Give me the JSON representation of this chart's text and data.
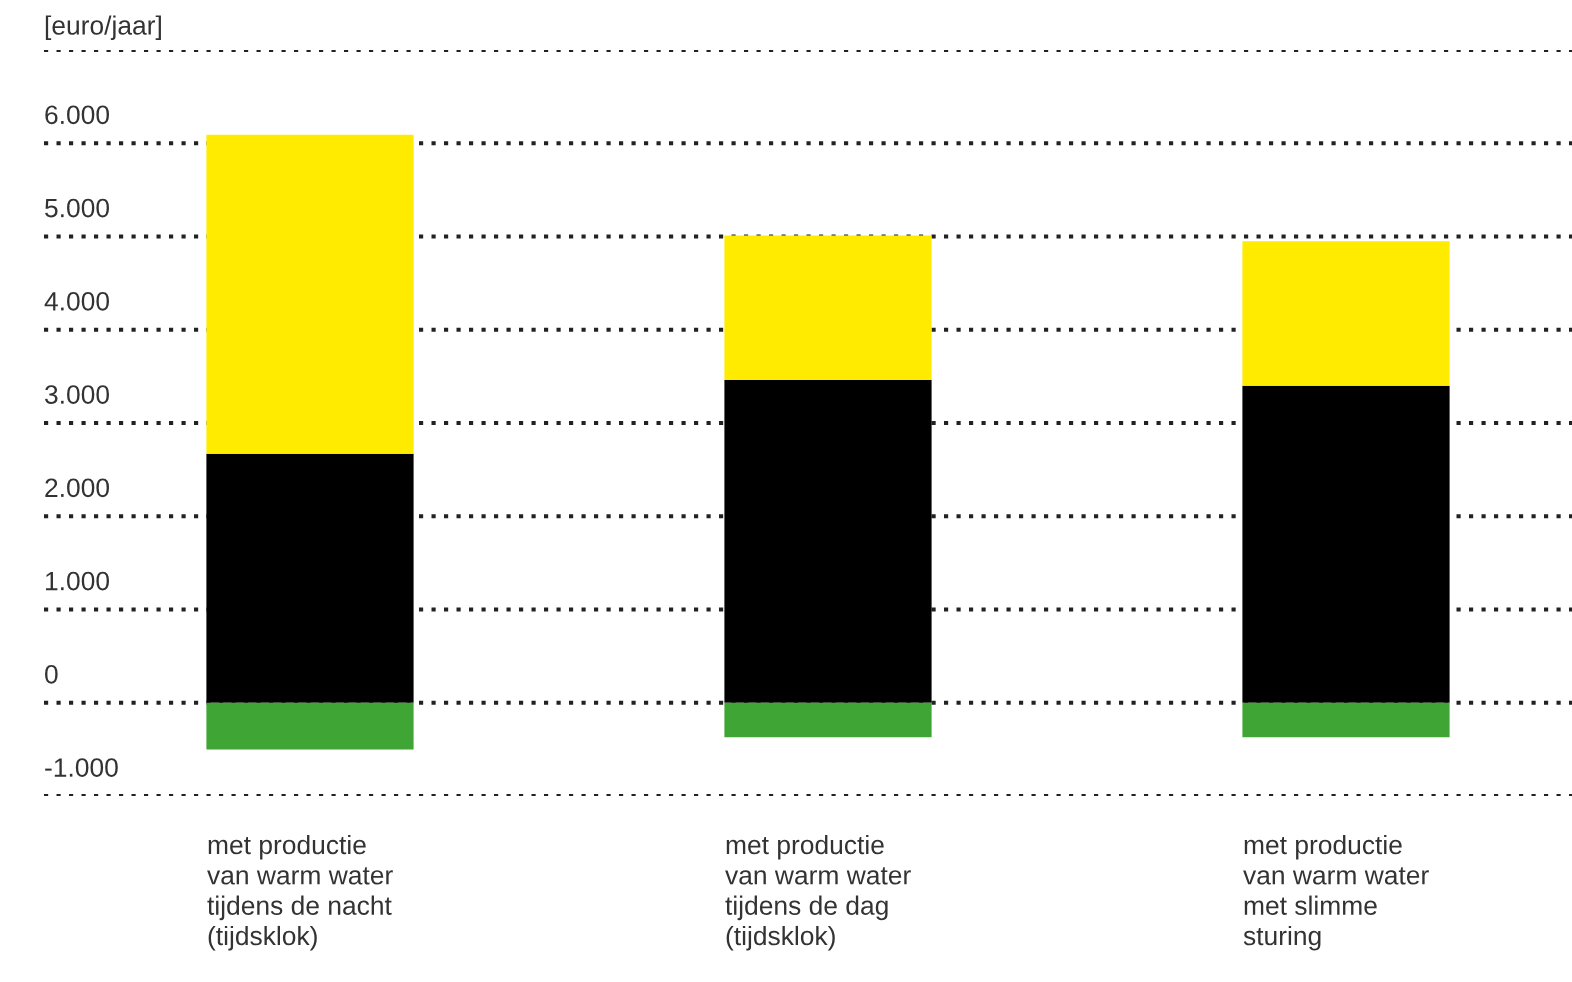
{
  "chart_data": {
    "type": "bar",
    "stacked": true,
    "ylabel": "[euro/jaar]",
    "categories": [
      "met productie\nvan warm water\ntijdens de nacht\n(tijdsklok)",
      "met productie\nvan warm water\ntijdens de dag\n(tijdsklok)",
      "met productie\nvan warm water\nmet slimme\nsturing"
    ],
    "series": [
      {
        "color": "#000000",
        "values": [
          2670,
          3460,
          3400
        ]
      },
      {
        "color": "#ffeb00",
        "values": [
          3420,
          1550,
          1550
        ]
      },
      {
        "color": "#3fa535",
        "values": [
          -500,
          -370,
          -370
        ]
      }
    ],
    "ylim": [
      -1000,
      7000
    ],
    "yticks": [
      {
        "value": -1000,
        "label": "-1.000"
      },
      0,
      {
        "value": 1000,
        "label": "1.000"
      },
      {
        "value": 2000,
        "label": "2.000"
      },
      {
        "value": 3000,
        "label": "3.000"
      },
      {
        "value": 4000,
        "label": "4.000"
      },
      {
        "value": 5000,
        "label": "5.000"
      },
      {
        "value": 6000,
        "label": "6.000"
      },
      {
        "value": 7000,
        "label": null
      }
    ],
    "grid": "y"
  }
}
